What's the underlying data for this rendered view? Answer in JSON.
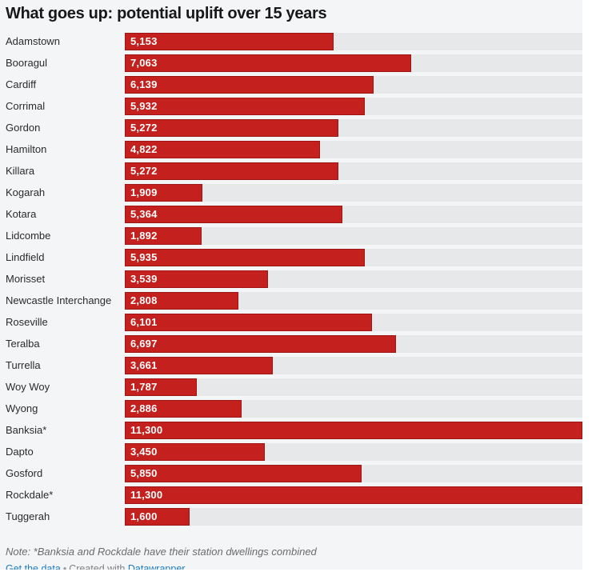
{
  "chart_data": {
    "type": "bar",
    "orientation": "horizontal",
    "title": "What goes up: potential uplift over 15 years",
    "categories": [
      "Adamstown",
      "Booragul",
      "Cardiff",
      "Corrimal",
      "Gordon",
      "Hamilton",
      "Killara",
      "Kogarah",
      "Kotara",
      "Lidcombe",
      "Lindfield",
      "Morisset",
      "Newcastle Interchange",
      "Roseville",
      "Teralba",
      "Turrella",
      "Woy Woy",
      "Wyong",
      "Banksia*",
      "Dapto",
      "Gosford",
      "Rockdale*",
      "Tuggerah"
    ],
    "values": [
      5153,
      7063,
      6139,
      5932,
      5272,
      4822,
      5272,
      1909,
      5364,
      1892,
      5935,
      3539,
      2808,
      6101,
      6697,
      3661,
      1787,
      2886,
      11300,
      3450,
      5850,
      11300,
      1600
    ],
    "value_labels": [
      "5,153",
      "7,063",
      "6,139",
      "5,932",
      "5,272",
      "4,822",
      "5,272",
      "1,909",
      "5,364",
      "1,892",
      "5,935",
      "3,539",
      "2,808",
      "6,101",
      "6,697",
      "3,661",
      "1,787",
      "2,886",
      "11,300",
      "3,450",
      "5,850",
      "11,300",
      "1,600"
    ],
    "xlim": [
      0,
      11300
    ],
    "grid": false,
    "legend": "none",
    "bar_color": "#c4201d",
    "track_color": "#e7e8ea"
  },
  "footer": {
    "note": "Note: *Banksia and Rockdale have their station dwellings combined",
    "get_data_label": "Get the data",
    "separator": "•",
    "created_with": "Created with",
    "datawrapper_label": "Datawrapper",
    "link_color": "#1d7cc2"
  }
}
